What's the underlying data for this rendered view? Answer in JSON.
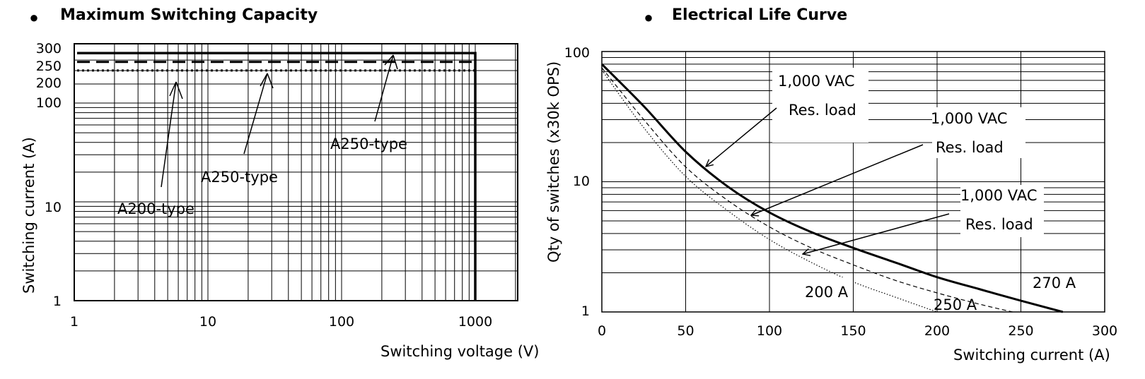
{
  "bullet": "●",
  "chart_data": [
    {
      "type": "line",
      "title": "Maximum Switching Capacity",
      "xlabel": "Switching voltage (V)",
      "ylabel": "Switching current  (A)",
      "x_scale": "log",
      "y_scale": "log",
      "xlim": [
        1,
        2000
      ],
      "ylim": [
        1,
        300
      ],
      "x_ticks": [
        1,
        10,
        100,
        1000
      ],
      "x_tick_labels": [
        "1",
        "10",
        "100",
        "1000"
      ],
      "y_ticks": [
        1,
        10,
        100,
        200,
        250,
        300
      ],
      "y_tick_labels": [
        "1",
        "10",
        "100",
        "200",
        "250",
        "300"
      ],
      "grid": true,
      "series": [
        {
          "style": "solid",
          "x": [
            1.05,
            1000,
            1000
          ],
          "y": [
            290,
            290,
            1
          ]
        },
        {
          "style": "dashed",
          "x": [
            1.05,
            1000
          ],
          "y": [
            240,
            240
          ]
        },
        {
          "style": "dotted",
          "x": [
            1.05,
            1000
          ],
          "y": [
            200,
            200
          ]
        }
      ],
      "annotations": [
        {
          "text": "A200-type",
          "x": 4.5,
          "y": 200
        },
        {
          "text": "A250-type",
          "x": 26,
          "y": 240
        },
        {
          "text": "A250-type",
          "x": 245,
          "y": 290
        }
      ]
    },
    {
      "type": "line",
      "title": "Electrical Life Curve",
      "xlabel": "Switching current (A)",
      "ylabel": "Qty of switches (x30k OPS)",
      "y_scale": "log",
      "xlim": [
        0,
        300
      ],
      "ylim": [
        1,
        100
      ],
      "x_ticks": [
        0,
        50,
        100,
        150,
        200,
        250,
        300
      ],
      "x_tick_labels": [
        "0",
        "50",
        "100",
        "150",
        "200",
        "250",
        "300"
      ],
      "y_ticks": [
        1,
        10,
        100
      ],
      "y_tick_labels": [
        "1",
        "10",
        "100"
      ],
      "grid": true,
      "series": [
        {
          "style": "solid",
          "label": "270 A",
          "x": [
            0,
            25,
            50,
            75,
            100,
            125,
            150,
            175,
            200,
            225,
            250,
            275
          ],
          "y": [
            80,
            38,
            17,
            9.2,
            5.8,
            4.1,
            3.1,
            2.4,
            1.85,
            1.5,
            1.22,
            1.0
          ]
        },
        {
          "style": "dashed",
          "label": "250 A",
          "x": [
            0,
            25,
            50,
            75,
            100,
            125,
            150,
            175,
            200,
            225,
            245
          ],
          "y": [
            75,
            30,
            13,
            7.2,
            4.5,
            3.1,
            2.3,
            1.75,
            1.4,
            1.15,
            1.0
          ]
        },
        {
          "style": "dotted",
          "label": "200 A",
          "x": [
            0,
            25,
            50,
            75,
            100,
            125,
            150,
            175,
            200
          ],
          "y": [
            72,
            26,
            11,
            6,
            3.6,
            2.4,
            1.7,
            1.3,
            1.0
          ]
        }
      ],
      "annotations": [
        {
          "line1": "1,000 VAC",
          "line2": "Res. load",
          "to_x": 63,
          "to_y": 11.5
        },
        {
          "line1": "1,000 VAC",
          "line2": "Res. load",
          "to_x": 90,
          "to_y": 5.2
        },
        {
          "line1": "1,000 VAC",
          "line2": "Res. load",
          "to_x": 120,
          "to_y": 2.5
        }
      ]
    }
  ]
}
